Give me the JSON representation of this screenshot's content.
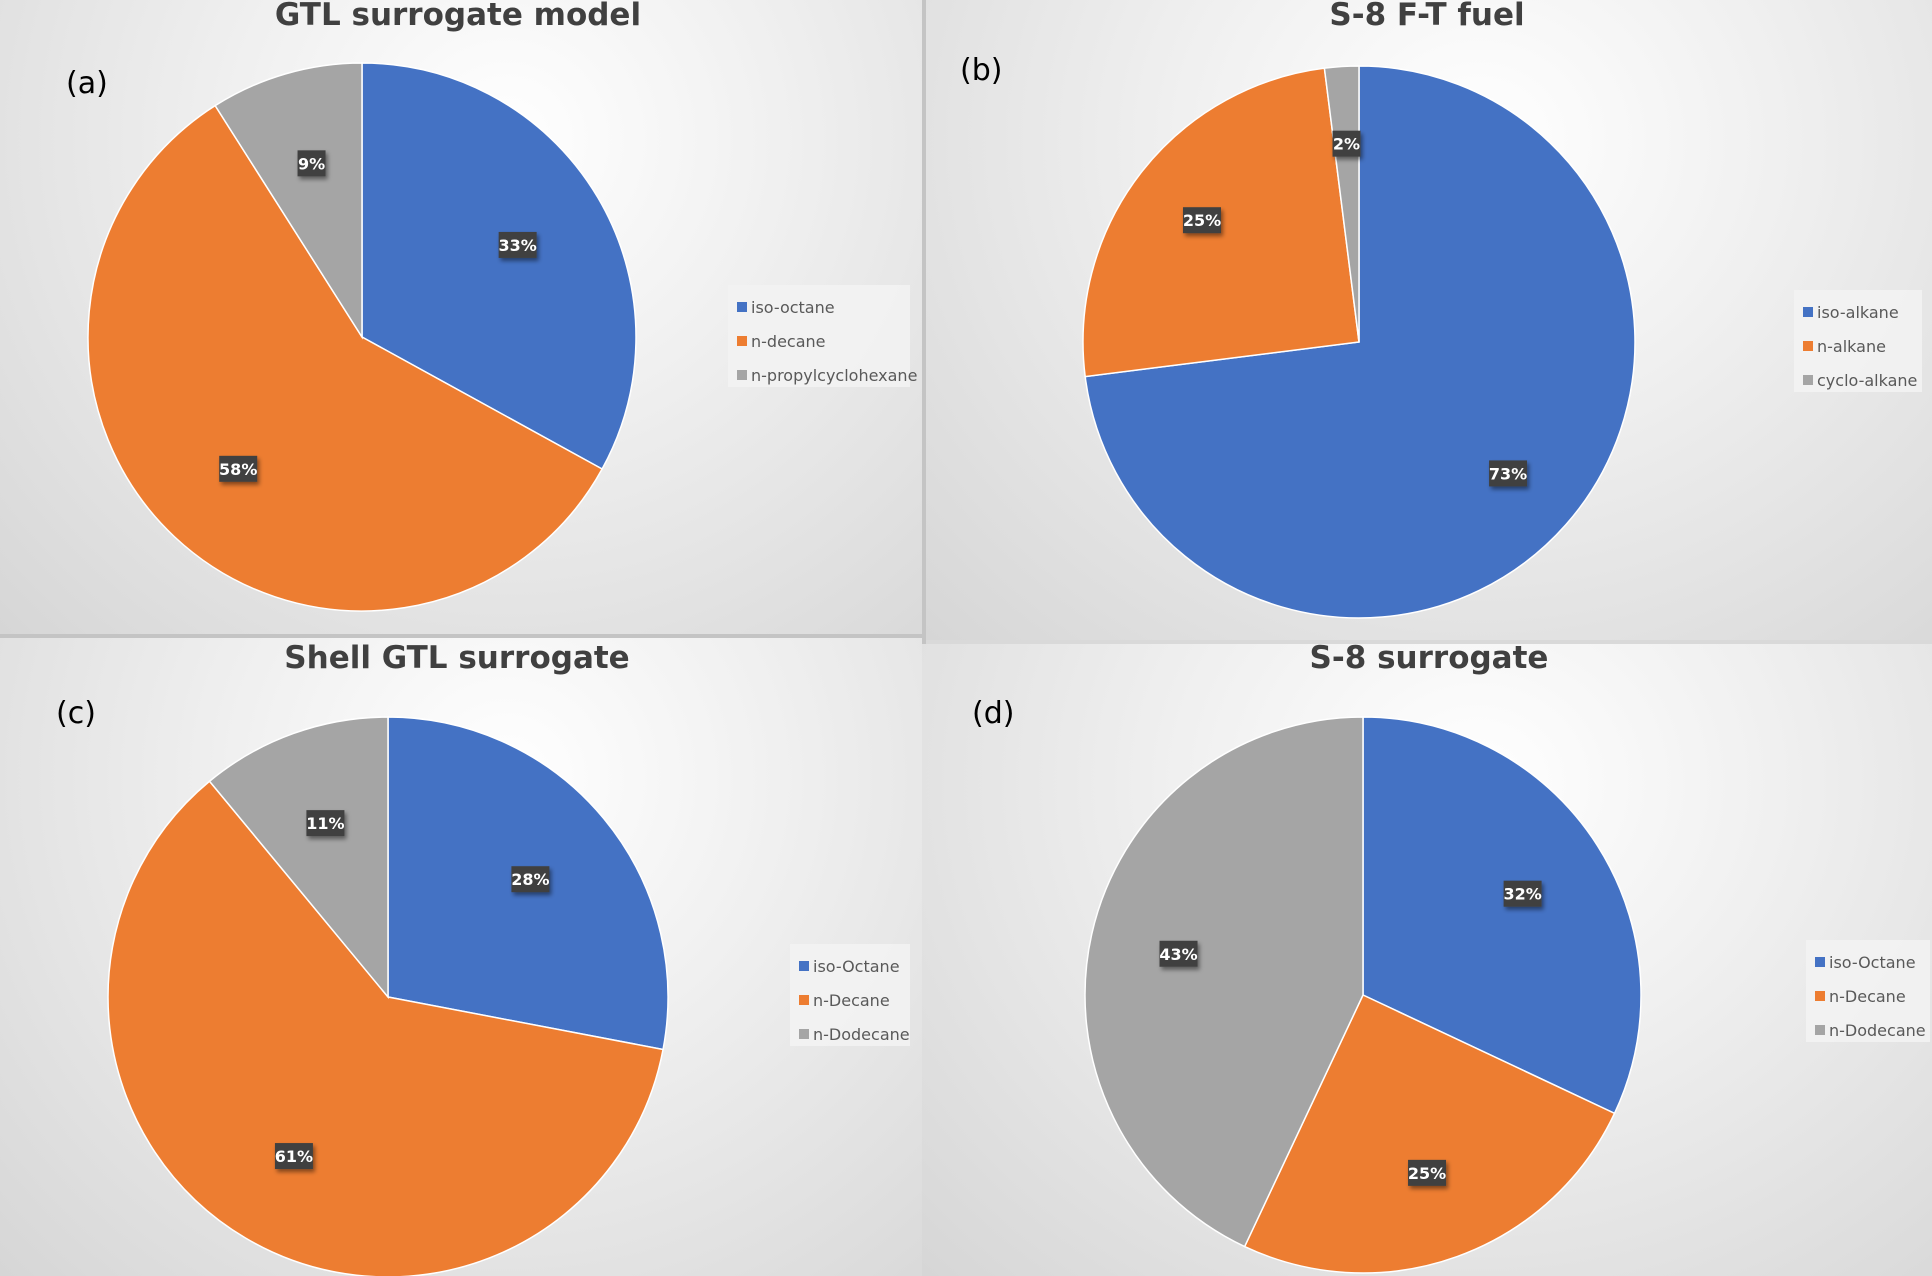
{
  "colors": {
    "blue": "#4472c4",
    "orange": "#ed7d31",
    "gray": "#a5a5a5"
  },
  "chart_data": [
    {
      "type": "pie",
      "panel_label": "(a)",
      "title": "GTL surrogate model",
      "slices": [
        {
          "name": "iso-octane",
          "value": 33,
          "label": "33%",
          "color": "#4472c4"
        },
        {
          "name": "n-decane",
          "value": 58,
          "label": "58%",
          "color": "#ed7d31"
        },
        {
          "name": "n-propylcyclohexane",
          "value": 9,
          "label": "9%",
          "color": "#a5a5a5"
        }
      ],
      "legend_position": "right"
    },
    {
      "type": "pie",
      "panel_label": "(b)",
      "title": "S-8 F-T fuel",
      "slices": [
        {
          "name": "iso-alkane",
          "value": 73,
          "label": "73%",
          "color": "#4472c4"
        },
        {
          "name": "n-alkane",
          "value": 25,
          "label": "25%",
          "color": "#ed7d31"
        },
        {
          "name": "cyclo-alkane",
          "value": 2,
          "label": "2%",
          "color": "#a5a5a5"
        }
      ],
      "legend_position": "right"
    },
    {
      "type": "pie",
      "panel_label": "(c)",
      "title": "Shell GTL surrogate",
      "slices": [
        {
          "name": "iso-Octane",
          "value": 28,
          "label": "28%",
          "color": "#4472c4"
        },
        {
          "name": "n-Decane",
          "value": 61,
          "label": "61%",
          "color": "#ed7d31"
        },
        {
          "name": "n-Dodecane",
          "value": 11,
          "label": "11%",
          "color": "#a5a5a5"
        }
      ],
      "legend_position": "right"
    },
    {
      "type": "pie",
      "panel_label": "(d)",
      "title": "S-8 surrogate",
      "slices": [
        {
          "name": "iso-Octane",
          "value": 32,
          "label": "32%",
          "color": "#4472c4"
        },
        {
          "name": "n-Decane",
          "value": 25,
          "label": "25%",
          "color": "#ed7d31"
        },
        {
          "name": "n-Dodecane",
          "value": 43,
          "label": "43%",
          "color": "#a5a5a5"
        }
      ],
      "legend_position": "right"
    }
  ]
}
